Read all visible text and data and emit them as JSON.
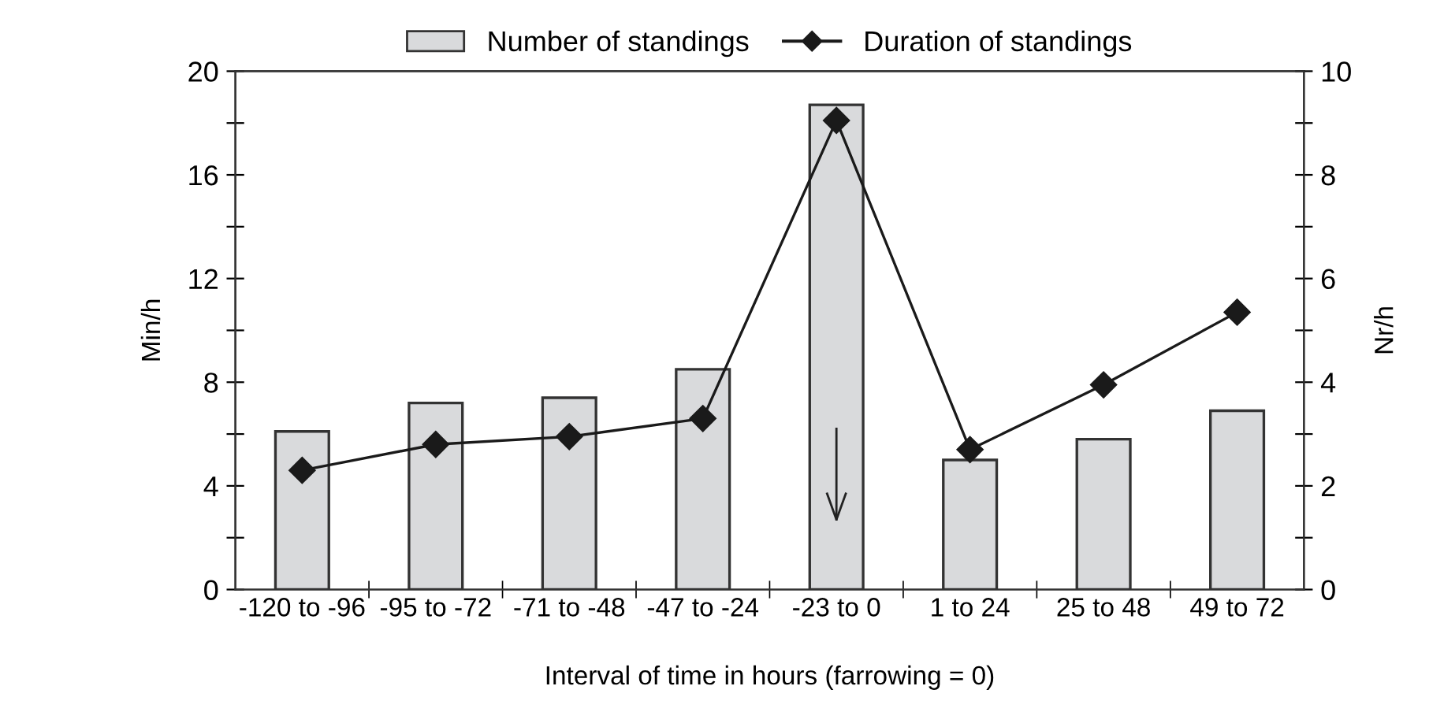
{
  "chart_data": {
    "type": "bar",
    "xlabel": "Interval of time in hours (farrowing = 0)",
    "ylabel": "Min/h",
    "y2label": "Nr/h",
    "categories": [
      "-120 to -96",
      "-95 to -72",
      "-71 to -48",
      "-47 to -24",
      "-23 to 0",
      "1 to 24",
      "25 to 48",
      "49 to 72"
    ],
    "series": [
      {
        "name": "Number of standings",
        "color": "#d9dadc",
        "values": [
          6.1,
          7.2,
          7.4,
          8.5,
          18.7,
          5.0,
          5.8,
          6.9
        ]
      },
      {
        "name": "Duration of standings",
        "type": "line",
        "axis": "y2",
        "color": "#1a1a1a",
        "marker": "diamond",
        "values": [
          2.3,
          2.8,
          2.95,
          3.3,
          9.05,
          2.7,
          3.95,
          5.35
        ]
      }
    ],
    "ylim": [
      0,
      20
    ],
    "yticks": [
      0,
      {
        "value": 2,
        "label": null
      },
      4,
      {
        "value": 6,
        "label": null
      },
      8,
      {
        "value": 10,
        "label": null
      },
      12,
      {
        "value": 14,
        "label": null
      },
      16,
      {
        "value": 18,
        "label": null
      },
      20
    ],
    "y2lim": [
      0,
      10
    ],
    "y2ticks": [
      0,
      {
        "value": 1,
        "label": null
      },
      2,
      {
        "value": 3,
        "label": null
      },
      4,
      {
        "value": 5,
        "label": null
      },
      6,
      {
        "value": 7,
        "label": null
      },
      8,
      {
        "value": 9,
        "label": null
      },
      10
    ],
    "grid": false,
    "legend": "top"
  }
}
